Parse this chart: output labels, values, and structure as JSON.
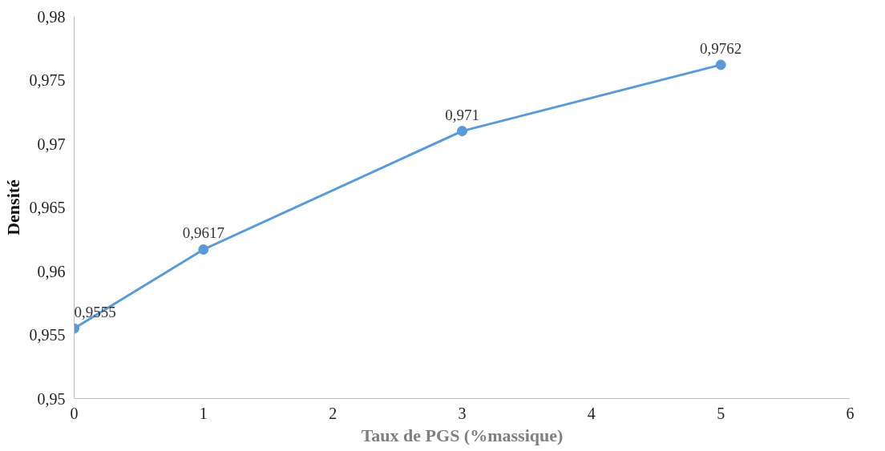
{
  "chart_data": {
    "type": "line",
    "xlabel": "Taux de PGS (%massique)",
    "ylabel": "Densité",
    "x": [
      0,
      1,
      3,
      5
    ],
    "series": [
      {
        "color": "#5b9bd5",
        "values": [
          0.9555,
          0.9617,
          0.971,
          0.9762
        ],
        "value_labels": [
          "0,9555",
          "0,9617",
          "0,971",
          "0,9762"
        ]
      }
    ],
    "xlim": [
      0,
      6
    ],
    "xticks": [
      0,
      1,
      2,
      3,
      4,
      5,
      6
    ],
    "ylim": [
      0.95,
      0.98
    ],
    "yticks": [
      {
        "value": 0.95,
        "label": "0,95"
      },
      {
        "value": 0.955,
        "label": "0,955"
      },
      {
        "value": 0.96,
        "label": "0,96"
      },
      {
        "value": 0.965,
        "label": "0,965"
      },
      {
        "value": 0.97,
        "label": "0,97"
      },
      {
        "value": 0.975,
        "label": "0,975"
      },
      {
        "value": 0.98,
        "label": "0,98"
      }
    ],
    "marker": "circle",
    "grid": false
  }
}
